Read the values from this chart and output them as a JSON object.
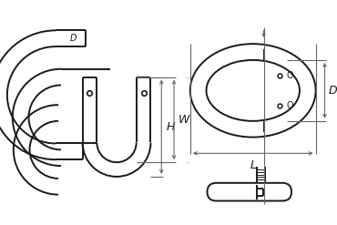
{
  "bg_color": "#ffffff",
  "lc": "#1a1a1a",
  "dc": "#666666",
  "lw_main": 1.4,
  "lw_dim": 0.8,
  "label_H": "H",
  "label_W": "W",
  "label_D": "D",
  "label_L": "L",
  "label_O": "O",
  "label_d_box": "D"
}
